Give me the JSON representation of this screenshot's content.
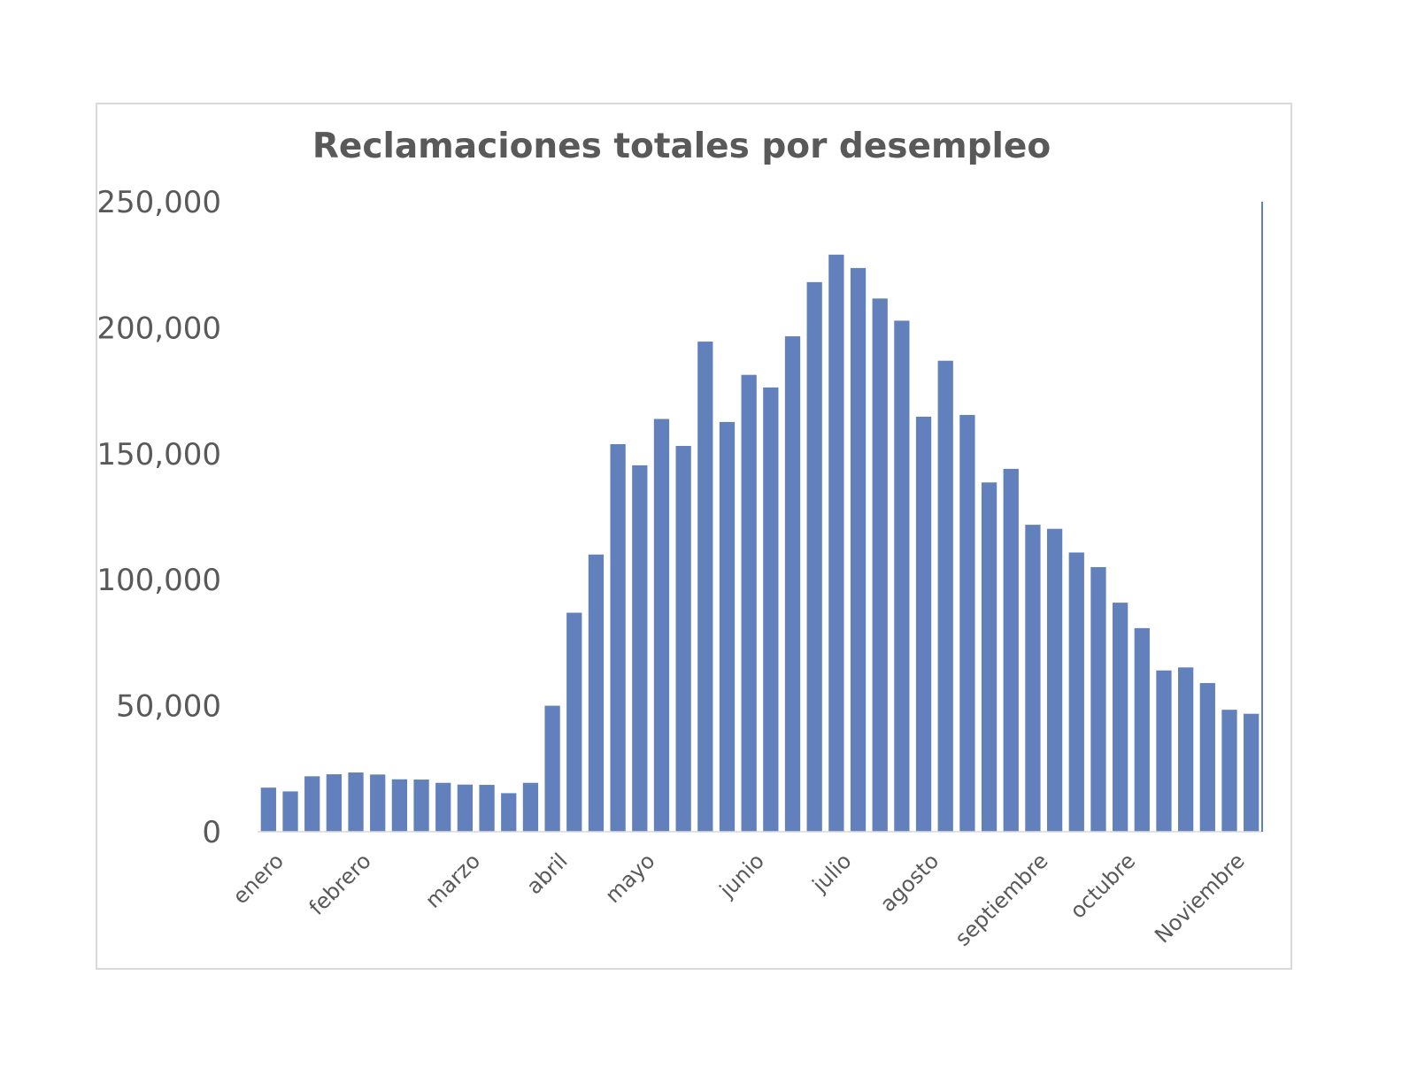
{
  "chart_data": {
    "type": "bar",
    "title": "Reclamaciones totales por desempleo",
    "xlabel": "",
    "ylabel": "",
    "ylim": [
      0,
      250000
    ],
    "yticks": [
      "0",
      "50,000",
      "100,000",
      "150,000",
      "200,000",
      "250,000"
    ],
    "grid": false,
    "legend": "none",
    "bar_color": "#6281BC",
    "axis_color": "#6281BC",
    "text_color": "#595959",
    "month_labels": [
      {
        "label": "enero",
        "index": 0
      },
      {
        "label": "febrero",
        "index": 4
      },
      {
        "label": "marzo",
        "index": 9
      },
      {
        "label": "abril",
        "index": 13
      },
      {
        "label": "mayo",
        "index": 17
      },
      {
        "label": "junio",
        "index": 22
      },
      {
        "label": "julio",
        "index": 26
      },
      {
        "label": "agosto",
        "index": 30
      },
      {
        "label": "septiembre",
        "index": 35
      },
      {
        "label": "octubre",
        "index": 39
      },
      {
        "label": "Noviembre",
        "index": 44
      }
    ],
    "values": [
      17500,
      16000,
      22000,
      22800,
      23500,
      22700,
      20800,
      20700,
      19400,
      18700,
      18600,
      15300,
      19400,
      50000,
      86900,
      110000,
      153800,
      145400,
      163800,
      153100,
      194500,
      162600,
      181300,
      176300,
      196600,
      218100,
      229000,
      223700,
      211600,
      202800,
      164700,
      186900,
      165400,
      138600,
      144000,
      121800,
      120200,
      110800,
      105000,
      90900,
      80800,
      64000,
      65200,
      59000,
      48400,
      46800
    ]
  }
}
